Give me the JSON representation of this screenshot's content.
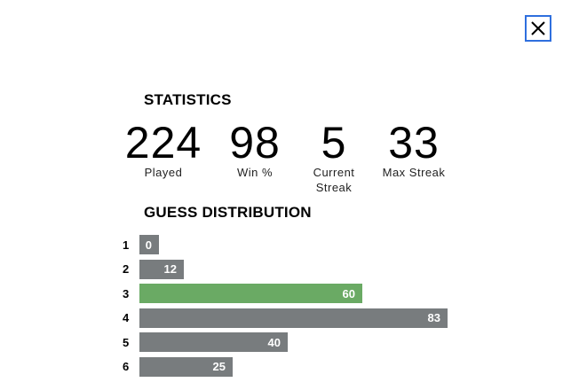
{
  "close_button": {
    "icon": "close-icon",
    "border_color": "#2f6fde"
  },
  "statistics": {
    "title": "STATISTICS",
    "items": [
      {
        "value": "224",
        "label": "Played"
      },
      {
        "value": "98",
        "label": "Win %"
      },
      {
        "value": "5",
        "label": "Current Streak"
      },
      {
        "value": "33",
        "label": "Max Streak"
      }
    ]
  },
  "guess_distribution": {
    "title": "GUESS DISTRIBUTION",
    "highlight_color": "#6aaa64",
    "bar_color": "#787c7e",
    "rows": [
      {
        "guess": "1",
        "count": 0,
        "highlighted": false
      },
      {
        "guess": "2",
        "count": 12,
        "highlighted": false
      },
      {
        "guess": "3",
        "count": 60,
        "highlighted": true
      },
      {
        "guess": "4",
        "count": 83,
        "highlighted": false
      },
      {
        "guess": "5",
        "count": 40,
        "highlighted": false
      },
      {
        "guess": "6",
        "count": 25,
        "highlighted": false
      }
    ]
  }
}
